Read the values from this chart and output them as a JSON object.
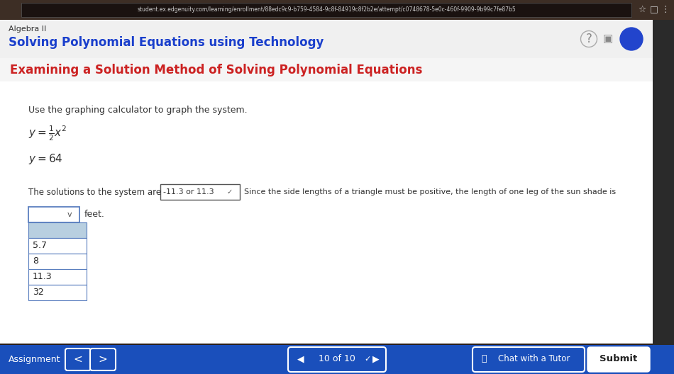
{
  "browser_url": "student.ex.edgenuity.com/learning/enrollment/88edc9c9-b759-4584-9c8f-84919c8f2b2e/attempt/c0748678-5e0c-460f-9909-9b99c7fe87b5",
  "browser_bg": "#2a1f1a",
  "browser_bar_bg": "#3d2e25",
  "url_bar_bg": "#1a1210",
  "nav_bar_bg": "#f0f0f0",
  "top_bar_text": "Algebra II",
  "subtitle": "Solving Polynomial Equations using Technology",
  "section_title": "Examining a Solution Method of Solving Polynomial Equations",
  "section_title_color": "#cc2222",
  "section_bg": "#f5f5f5",
  "content_bg": "#ffffff",
  "instruction": "Use the graphing calculator to graph the system.",
  "solutions_label": "The solutions to the system are",
  "solutions_value": "-11.3 or 11.3",
  "since_text": "Since the side lengths of a triangle must be positive, the length of one leg of the sun shade is",
  "feet_text": "feet.",
  "dropdown_items": [
    "5.7",
    "8",
    "11.3",
    "32"
  ],
  "dropdown_highlight_bg": "#b8cfe0",
  "dropdown_border": "#5a7fbf",
  "footer_bg": "#1a4fbb",
  "footer_text": "Assignment",
  "nav_text": "10 of 10",
  "chat_text": "Chat with a Tutor",
  "submit_text": "Submit",
  "sm_circle_color": "#2244cc",
  "right_panel_bg": "#2a2a2a"
}
